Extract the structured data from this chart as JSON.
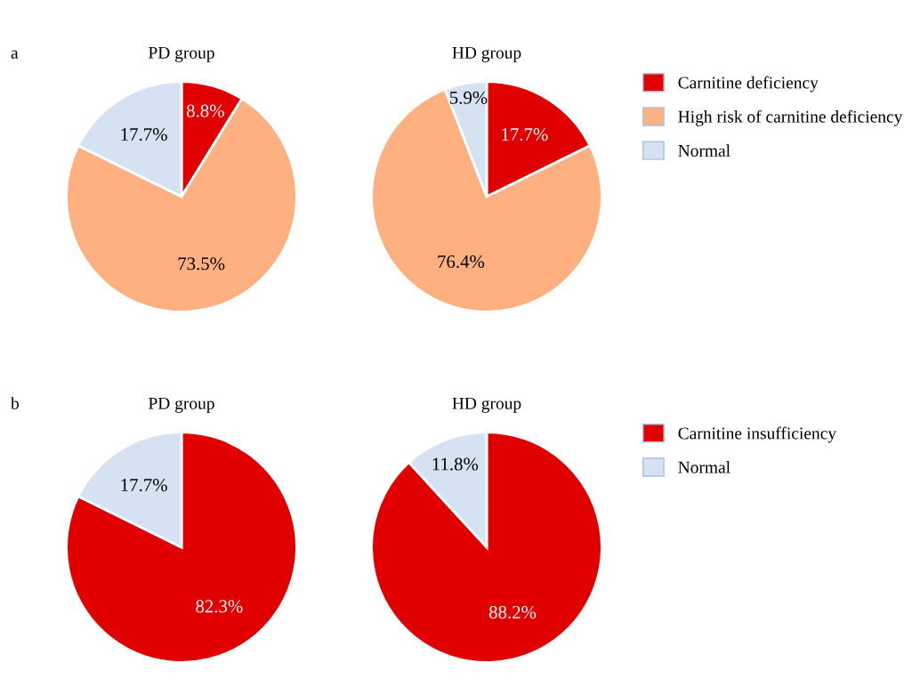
{
  "chart_data": [
    {
      "type": "pie",
      "title": "PD group",
      "annotations": [
        "a"
      ],
      "categories": [
        "Carnitine deficiency",
        "High risk of carnitine deficiency",
        "Normal"
      ],
      "values": [
        8.8,
        73.5,
        17.7
      ],
      "value_labels": [
        "8.8%",
        "73.5%",
        "17.7%"
      ],
      "colors": [
        "#e00000",
        "#ffb081",
        "#d6e2f2"
      ],
      "legend": "right"
    },
    {
      "type": "pie",
      "title": "HD group",
      "values": [
        17.7,
        76.4,
        5.9
      ],
      "value_labels": [
        "17.7%",
        "76.4%",
        "5.9%"
      ],
      "colors": [
        "#e00000",
        "#ffb081",
        "#d6e2f2"
      ]
    },
    {
      "type": "pie",
      "title": "PD group",
      "annotations": [
        "b"
      ],
      "categories": [
        "Carnitine insufficiency",
        "Normal"
      ],
      "values": [
        82.3,
        17.7
      ],
      "value_labels": [
        "82.3%",
        "17.7%"
      ],
      "colors": [
        "#e00000",
        "#d6e2f2"
      ],
      "legend": "right"
    },
    {
      "type": "pie",
      "title": "HD group",
      "values": [
        88.2,
        11.8
      ],
      "value_labels": [
        "88.2%",
        "11.8%"
      ],
      "colors": [
        "#e00000",
        "#d6e2f2"
      ]
    }
  ]
}
